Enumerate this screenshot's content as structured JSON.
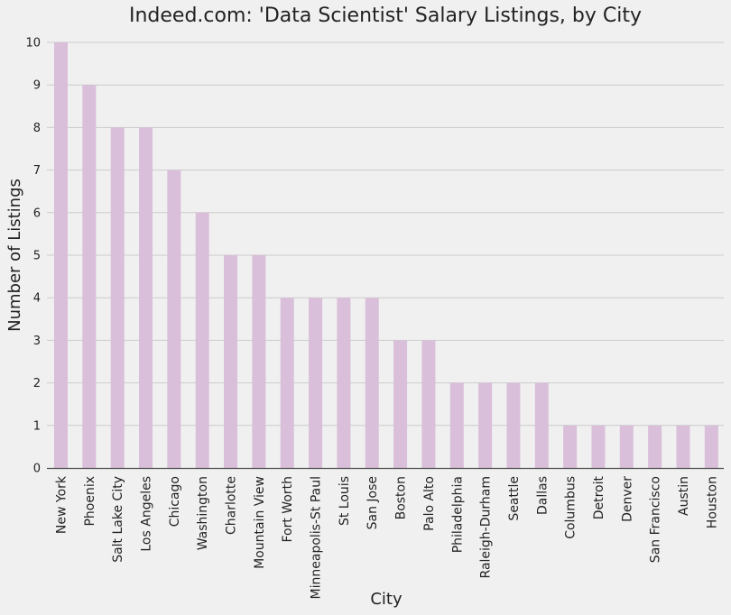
{
  "chart_data": {
    "type": "bar",
    "title": "Indeed.com: 'Data Scientist' Salary Listings, by City",
    "xlabel": "City",
    "ylabel": "Number of Listings",
    "categories": [
      "New York",
      "Phoenix",
      "Salt Lake City",
      "Los Angeles",
      "Chicago",
      "Washington",
      "Charlotte",
      "Mountain View",
      "Fort Worth",
      "Minneapolis-St Paul",
      "St Louis",
      "San Jose",
      "Boston",
      "Palo Alto",
      "Philadelphia",
      "Raleigh-Durham",
      "Seattle",
      "Dallas",
      "Columbus",
      "Detroit",
      "Denver",
      "San Francisco",
      "Austin",
      "Houston"
    ],
    "values": [
      10,
      9,
      8,
      8,
      7,
      6,
      5,
      5,
      4,
      4,
      4,
      4,
      3,
      3,
      2,
      2,
      2,
      2,
      1,
      1,
      1,
      1,
      1,
      1
    ],
    "ylim": [
      0,
      10
    ],
    "yticks": [
      "0",
      "1",
      "2",
      "3",
      "4",
      "5",
      "6",
      "7",
      "8",
      "9",
      "10"
    ],
    "grid": "horizontal",
    "colors": {
      "bar": "#d9bfd9",
      "background": "#f0f0f0",
      "grid": "#cbcbcb",
      "axis": "#555555",
      "text": "#222222"
    }
  }
}
